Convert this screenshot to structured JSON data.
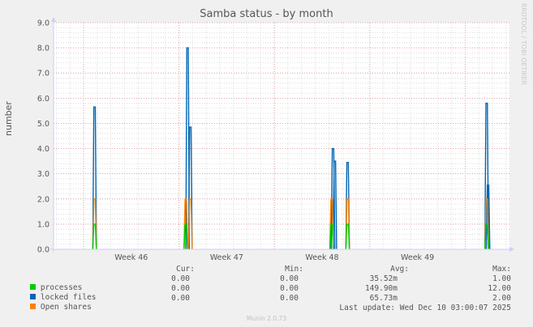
{
  "header": {
    "title": "Samba status - by month",
    "watermark": "RRDTOOL / TOBI OETIKER"
  },
  "chart_data": {
    "type": "line",
    "title": "Samba status - by month",
    "xlabel": "",
    "ylabel": "number",
    "ylim": [
      0,
      9
    ],
    "yticks": [
      "0.0",
      "1.0",
      "2.0",
      "3.0",
      "4.0",
      "5.0",
      "6.0",
      "7.0",
      "8.0",
      "9.0"
    ],
    "xticks": [
      "Week 46",
      "Week 47",
      "Week 48",
      "Week 49"
    ],
    "grid": true,
    "legend_position": "bottom",
    "series": [
      {
        "name": "processes",
        "color": "#00cc00",
        "points": [
          [
            0.09,
            1.0
          ],
          [
            0.29,
            1.0
          ],
          [
            0.61,
            1.0
          ],
          [
            0.645,
            1.0
          ],
          [
            0.95,
            1.0
          ]
        ]
      },
      {
        "name": "locked files",
        "color": "#0066b3",
        "points": [
          [
            0.09,
            5.65
          ],
          [
            0.294,
            8.0
          ],
          [
            0.3,
            4.85
          ],
          [
            0.613,
            4.0
          ],
          [
            0.617,
            3.5
          ],
          [
            0.645,
            3.45
          ],
          [
            0.95,
            5.8
          ],
          [
            0.953,
            2.55
          ]
        ]
      },
      {
        "name": "Open shares",
        "color": "#ff8000",
        "points": [
          [
            0.09,
            2.0
          ],
          [
            0.29,
            2.0
          ],
          [
            0.3,
            2.0
          ],
          [
            0.61,
            2.0
          ],
          [
            0.645,
            2.0
          ],
          [
            0.95,
            2.0
          ]
        ]
      }
    ]
  },
  "legend": {
    "headers": {
      "cur": "Cur:",
      "min": "Min:",
      "avg": "Avg:",
      "max": "Max:"
    },
    "rows": [
      {
        "label": "processes",
        "color": "#00cc00",
        "cur": "0.00",
        "min": "0.00",
        "avg": "35.52m",
        "max": "1.00"
      },
      {
        "label": "locked files",
        "color": "#0066b3",
        "cur": "0.00",
        "min": "0.00",
        "avg": "149.90m",
        "max": "12.00"
      },
      {
        "label": "Open shares",
        "color": "#ff8000",
        "cur": "0.00",
        "min": "0.00",
        "avg": "65.73m",
        "max": "2.00"
      }
    ],
    "last_update": "Last update: Wed Dec 10 03:00:07 2025"
  },
  "footer": {
    "version": "Munin 2.0.73"
  }
}
